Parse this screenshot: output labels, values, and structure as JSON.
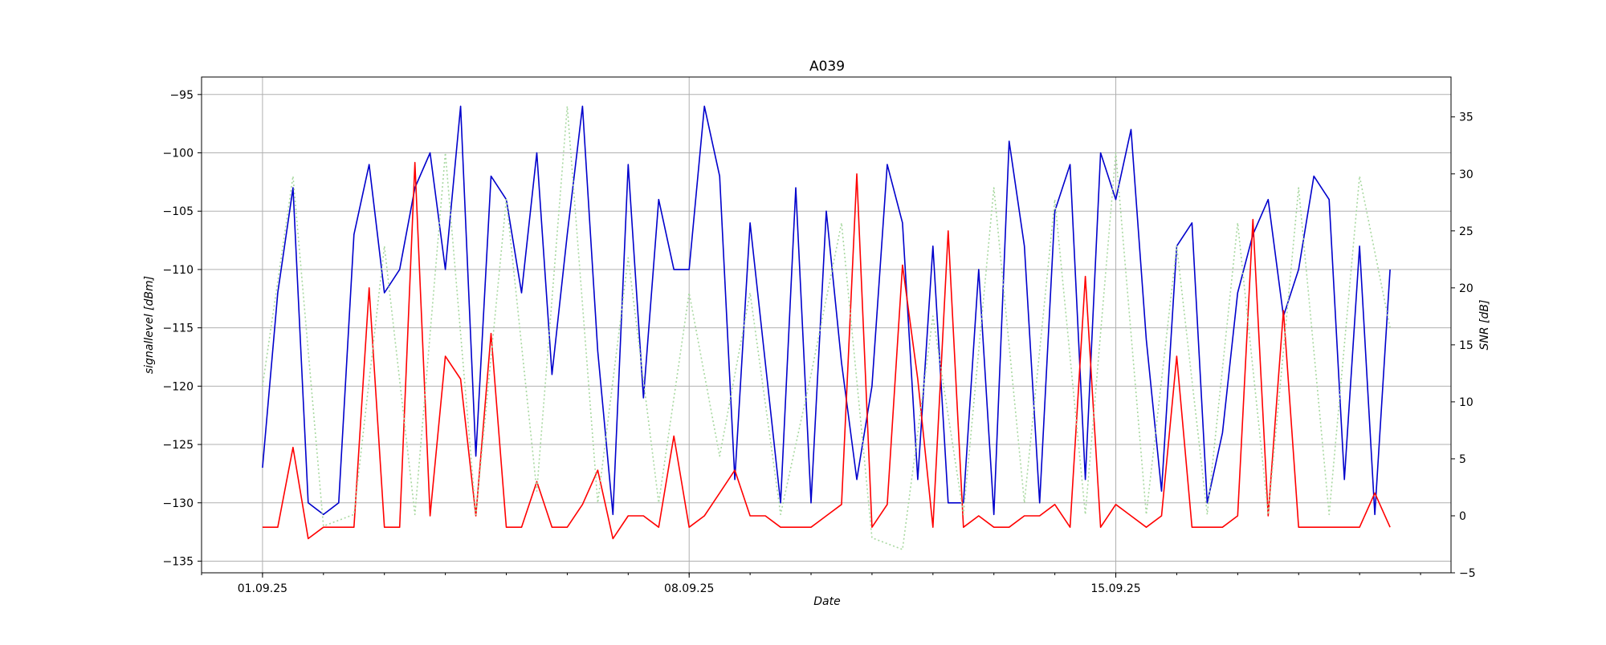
{
  "chart_data": {
    "type": "line",
    "title": "A039",
    "xlabel": "Date",
    "ylabel_left": "signallevel [dBm]",
    "ylabel_right": "SNR [dB]",
    "grid": true,
    "x_range": [
      "2025-08-31T00:00",
      "2025-09-20T12:00"
    ],
    "ylim_left": [
      -136,
      -93.5
    ],
    "ylim_right": [
      -5,
      38.5
    ],
    "left_ticks": [
      -95,
      -100,
      -105,
      -110,
      -115,
      -120,
      -125,
      -130,
      -135
    ],
    "right_ticks": [
      35,
      30,
      25,
      20,
      15,
      10,
      5,
      0,
      -5
    ],
    "x_ticks": [
      {
        "date": "2025-09-01",
        "label": "01.09.25"
      },
      {
        "date": "2025-09-08",
        "label": "08.09.25"
      },
      {
        "date": "2025-09-15",
        "label": "15.09.25"
      }
    ],
    "series": [
      {
        "axis": "left",
        "color": "#0000cc",
        "style": "solid",
        "x": [
          "2025-09-01T00:00",
          "2025-09-01T06:00",
          "2025-09-01T12:00",
          "2025-09-01T18:00",
          "2025-09-02T00:00",
          "2025-09-02T06:00",
          "2025-09-02T12:00",
          "2025-09-02T18:00",
          "2025-09-03T00:00",
          "2025-09-03T06:00",
          "2025-09-03T12:00",
          "2025-09-03T18:00",
          "2025-09-04T00:00",
          "2025-09-04T06:00",
          "2025-09-04T12:00",
          "2025-09-04T18:00",
          "2025-09-05T00:00",
          "2025-09-05T06:00",
          "2025-09-05T12:00",
          "2025-09-05T18:00",
          "2025-09-06T00:00",
          "2025-09-06T06:00",
          "2025-09-06T12:00",
          "2025-09-06T18:00",
          "2025-09-07T00:00",
          "2025-09-07T06:00",
          "2025-09-07T12:00",
          "2025-09-07T18:00",
          "2025-09-08T00:00",
          "2025-09-08T06:00",
          "2025-09-08T12:00",
          "2025-09-08T18:00",
          "2025-09-09T00:00",
          "2025-09-09T06:00",
          "2025-09-09T12:00",
          "2025-09-09T18:00",
          "2025-09-10T00:00",
          "2025-09-10T06:00",
          "2025-09-10T12:00",
          "2025-09-10T18:00",
          "2025-09-11T00:00",
          "2025-09-11T06:00",
          "2025-09-11T12:00",
          "2025-09-11T18:00",
          "2025-09-12T00:00",
          "2025-09-12T06:00",
          "2025-09-12T12:00",
          "2025-09-12T18:00",
          "2025-09-13T00:00",
          "2025-09-13T06:00",
          "2025-09-13T12:00",
          "2025-09-13T18:00",
          "2025-09-14T00:00",
          "2025-09-14T06:00",
          "2025-09-14T12:00",
          "2025-09-14T18:00",
          "2025-09-15T00:00",
          "2025-09-15T06:00",
          "2025-09-15T12:00",
          "2025-09-15T18:00",
          "2025-09-16T00:00",
          "2025-09-16T06:00",
          "2025-09-16T12:00",
          "2025-09-16T18:00",
          "2025-09-17T00:00",
          "2025-09-17T06:00",
          "2025-09-17T12:00",
          "2025-09-17T18:00",
          "2025-09-18T00:00",
          "2025-09-18T06:00",
          "2025-09-18T12:00",
          "2025-09-18T18:00",
          "2025-09-19T00:00",
          "2025-09-19T06:00",
          "2025-09-19T12:00"
        ],
        "y": [
          -127,
          -112,
          -103,
          -130,
          -131,
          -130,
          -107,
          -101,
          -112,
          -110,
          -103,
          -100,
          -110,
          -96,
          -126,
          -102,
          -104,
          -112,
          -100,
          -119,
          -107,
          -96,
          -117,
          -131,
          -101,
          -121,
          -104,
          -110,
          -110,
          -96,
          -102,
          -128,
          -106,
          -118,
          -130,
          -103,
          -130,
          -105,
          -118,
          -128,
          -120,
          -101,
          -106,
          -128,
          -108,
          -130,
          -130,
          -110,
          -131,
          -99,
          -108,
          -130,
          -105,
          -101,
          -128,
          -100,
          -104,
          -98,
          -116,
          -129,
          -108,
          -106,
          -130,
          -124,
          -112,
          -107,
          -104,
          -114,
          -110,
          -102,
          -104,
          -128,
          -108,
          -131,
          -110
        ]
      },
      {
        "axis": "right",
        "color": "#ff0000",
        "style": "solid",
        "x": [
          "2025-09-01T00:00",
          "2025-09-01T06:00",
          "2025-09-01T12:00",
          "2025-09-01T18:00",
          "2025-09-02T00:00",
          "2025-09-02T06:00",
          "2025-09-02T12:00",
          "2025-09-02T18:00",
          "2025-09-03T00:00",
          "2025-09-03T06:00",
          "2025-09-03T12:00",
          "2025-09-03T18:00",
          "2025-09-04T00:00",
          "2025-09-04T06:00",
          "2025-09-04T12:00",
          "2025-09-04T18:00",
          "2025-09-05T00:00",
          "2025-09-05T06:00",
          "2025-09-05T12:00",
          "2025-09-05T18:00",
          "2025-09-06T00:00",
          "2025-09-06T06:00",
          "2025-09-06T12:00",
          "2025-09-06T18:00",
          "2025-09-07T00:00",
          "2025-09-07T06:00",
          "2025-09-07T12:00",
          "2025-09-07T18:00",
          "2025-09-08T00:00",
          "2025-09-08T06:00",
          "2025-09-08T12:00",
          "2025-09-08T18:00",
          "2025-09-09T00:00",
          "2025-09-09T06:00",
          "2025-09-09T12:00",
          "2025-09-09T18:00",
          "2025-09-10T00:00",
          "2025-09-10T06:00",
          "2025-09-10T12:00",
          "2025-09-10T18:00",
          "2025-09-11T00:00",
          "2025-09-11T06:00",
          "2025-09-11T12:00",
          "2025-09-11T18:00",
          "2025-09-12T00:00",
          "2025-09-12T06:00",
          "2025-09-12T12:00",
          "2025-09-12T18:00",
          "2025-09-13T00:00",
          "2025-09-13T06:00",
          "2025-09-13T12:00",
          "2025-09-13T18:00",
          "2025-09-14T00:00",
          "2025-09-14T06:00",
          "2025-09-14T12:00",
          "2025-09-14T18:00",
          "2025-09-15T00:00",
          "2025-09-15T06:00",
          "2025-09-15T12:00",
          "2025-09-15T18:00",
          "2025-09-16T00:00",
          "2025-09-16T06:00",
          "2025-09-16T12:00",
          "2025-09-16T18:00",
          "2025-09-17T00:00",
          "2025-09-17T06:00",
          "2025-09-17T12:00",
          "2025-09-17T18:00",
          "2025-09-18T00:00",
          "2025-09-18T06:00",
          "2025-09-18T12:00",
          "2025-09-18T18:00",
          "2025-09-19T00:00",
          "2025-09-19T06:00",
          "2025-09-19T12:00"
        ],
        "y": [
          -1,
          -1,
          6,
          -2,
          -1,
          -1,
          -1,
          20,
          -1,
          -1,
          31,
          0,
          14,
          12,
          0,
          16,
          -1,
          -1,
          3,
          -1,
          -1,
          1,
          4,
          -2,
          0,
          0,
          -1,
          7,
          -1,
          0,
          2,
          4,
          0,
          0,
          -1,
          -1,
          -1,
          0,
          1,
          30,
          -1,
          1,
          22,
          12,
          -1,
          25,
          -1,
          0,
          -1,
          -1,
          0,
          0,
          1,
          -1,
          21,
          -1,
          1,
          0,
          -1,
          0,
          14,
          -1,
          -1,
          -1,
          0,
          26,
          0,
          18,
          -1,
          -1,
          -1,
          -1,
          -1,
          2,
          -1
        ]
      },
      {
        "axis": "left",
        "color": "#a8d8a0",
        "style": "dotted",
        "x": [
          "2025-09-01T00:00",
          "2025-09-01T12:00",
          "2025-09-02T00:00",
          "2025-09-02T12:00",
          "2025-09-03T00:00",
          "2025-09-03T12:00",
          "2025-09-04T00:00",
          "2025-09-04T12:00",
          "2025-09-05T00:00",
          "2025-09-05T12:00",
          "2025-09-06T00:00",
          "2025-09-06T12:00",
          "2025-09-07T00:00",
          "2025-09-07T12:00",
          "2025-09-08T00:00",
          "2025-09-08T12:00",
          "2025-09-09T00:00",
          "2025-09-09T12:00",
          "2025-09-10T00:00",
          "2025-09-10T12:00",
          "2025-09-11T00:00",
          "2025-09-11T12:00",
          "2025-09-12T00:00",
          "2025-09-12T12:00",
          "2025-09-13T00:00",
          "2025-09-13T12:00",
          "2025-09-14T00:00",
          "2025-09-14T12:00",
          "2025-09-15T00:00",
          "2025-09-15T12:00",
          "2025-09-16T00:00",
          "2025-09-16T12:00",
          "2025-09-17T00:00",
          "2025-09-17T12:00",
          "2025-09-18T00:00",
          "2025-09-18T12:00",
          "2025-09-19T00:00",
          "2025-09-19T12:00"
        ],
        "y": [
          -120,
          -102,
          -132,
          -131,
          -108,
          -131,
          -100,
          -131,
          -104,
          -129,
          -96,
          -130,
          -109,
          -130,
          -112,
          -126,
          -112,
          -131,
          -119,
          -106,
          -133,
          -134,
          -114,
          -131,
          -103,
          -130,
          -104,
          -131,
          -100,
          -131,
          -108,
          -131,
          -106,
          -131,
          -103,
          -131,
          -102,
          -115
        ]
      }
    ]
  }
}
